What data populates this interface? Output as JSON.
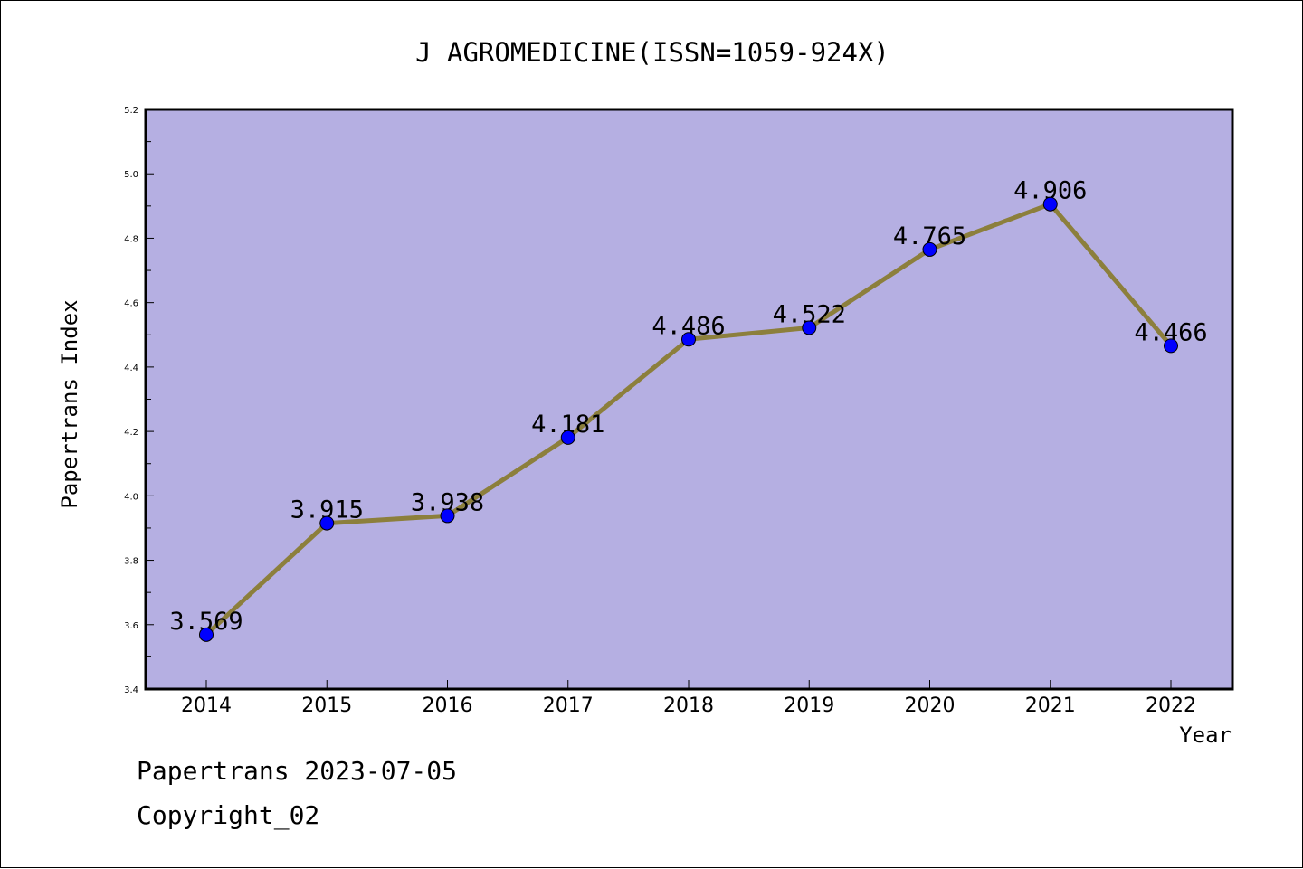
{
  "chart_data": {
    "type": "line",
    "title": "J AGROMEDICINE(ISSN=1059-924X)",
    "xlabel": "Year",
    "ylabel": "Papertrans Index",
    "categories": [
      "2014",
      "2015",
      "2016",
      "2017",
      "2018",
      "2019",
      "2020",
      "2021",
      "2022"
    ],
    "series": [
      {
        "values": [
          3.569,
          3.915,
          3.938,
          4.181,
          4.486,
          4.522,
          4.765,
          4.906,
          4.466
        ],
        "labels": [
          "3.569",
          "3.915",
          "3.938",
          "4.181",
          "4.486",
          "4.522",
          "4.765",
          "4.906",
          "4.466"
        ]
      }
    ],
    "ylim": [
      3.4,
      5.2
    ],
    "yticks": [
      "3.4",
      "3.6",
      "3.8",
      "4.0",
      "4.2",
      "4.4",
      "4.6",
      "4.8",
      "5.0",
      "5.2"
    ],
    "grid": false,
    "colors": {
      "plot_background": "#b5afe2",
      "line": "#8c7f3c",
      "marker": "#0000ff"
    }
  },
  "footer": {
    "line1": "Papertrans 2023-07-05",
    "line2": "Copyright_02"
  }
}
